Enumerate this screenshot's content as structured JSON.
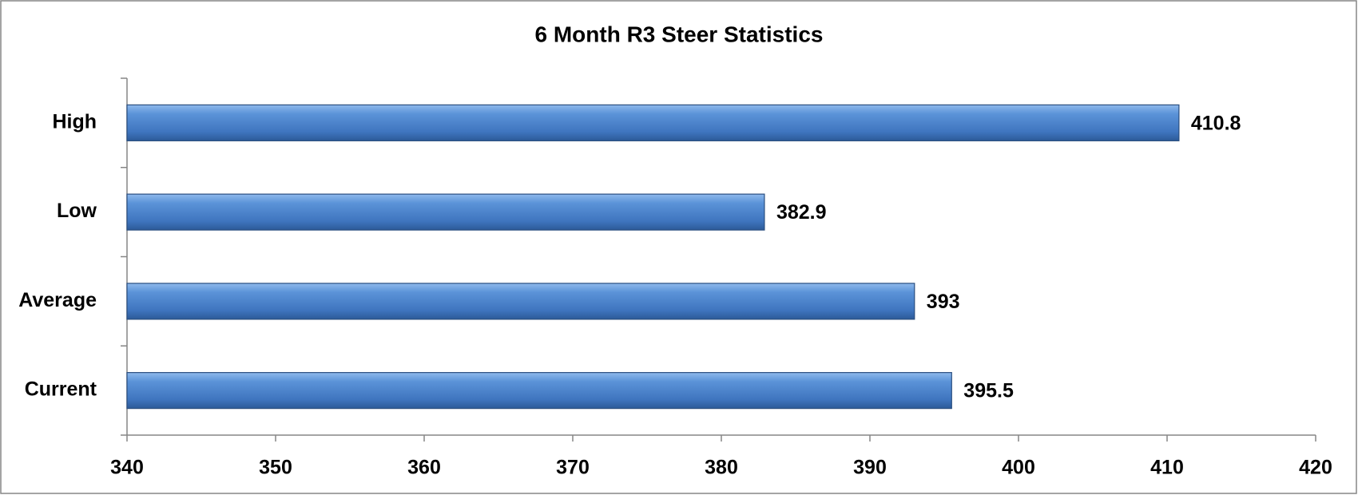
{
  "chart_data": {
    "type": "hbar",
    "title": "6 Month R3 Steer Statistics",
    "categories": [
      "High",
      "Low",
      "Average",
      "Current"
    ],
    "values": [
      410.8,
      382.9,
      393,
      395.5
    ],
    "color": "#4a7ebb",
    "xlim": [
      340,
      420
    ],
    "xticks": [
      340,
      350,
      360,
      370,
      380,
      390,
      400,
      410,
      420
    ]
  }
}
